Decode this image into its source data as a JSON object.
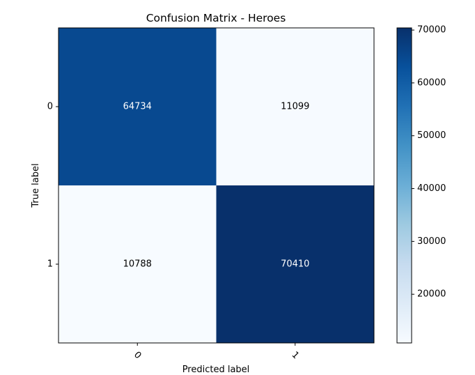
{
  "chart_data": {
    "type": "heatmap",
    "title": "Confusion Matrix - Heroes",
    "xlabel": "Predicted label",
    "ylabel": "True label",
    "x_tick_labels": [
      "0",
      "1"
    ],
    "y_tick_labels": [
      "0",
      "1"
    ],
    "matrix": [
      [
        64734,
        11099
      ],
      [
        10788,
        70410
      ]
    ],
    "matrix_labels": [
      [
        "64734",
        "11099"
      ],
      [
        "10788",
        "70410"
      ]
    ],
    "colormap": "Blues",
    "color_range": [
      10788,
      70410
    ],
    "colorbar_ticks": [
      20000,
      30000,
      40000,
      50000,
      60000,
      70000
    ],
    "colorbar_tick_labels": [
      "20000",
      "30000",
      "40000",
      "50000",
      "60000",
      "70000"
    ],
    "x_tick_rotation_deg": 45,
    "text_dark_color": "#000000",
    "text_light_color": "#ffffff",
    "grid": false
  }
}
